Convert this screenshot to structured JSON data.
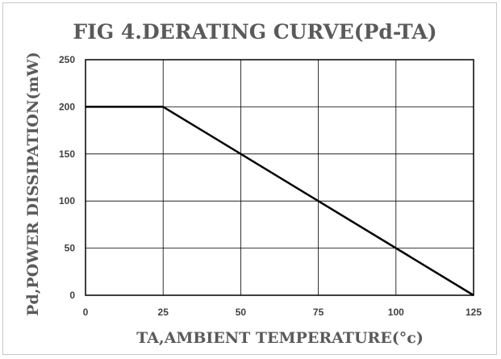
{
  "chart_data": {
    "type": "line",
    "title": "FIG 4.DERATING CURVE(Pd-TA)",
    "xlabel": "TA,AMBIENT TEMPERATURE(°c)",
    "ylabel": "Pd,POWER DISSIPATION(mW)",
    "xlim": [
      0,
      125
    ],
    "ylim": [
      0,
      250
    ],
    "xticks": [
      "0",
      "25",
      "50",
      "75",
      "100",
      "125"
    ],
    "yticks": [
      "0",
      "50",
      "100",
      "150",
      "200",
      "250"
    ],
    "grid": true,
    "legend": "none",
    "series": [
      {
        "x": [
          0,
          25,
          125
        ],
        "y": [
          200,
          200,
          0
        ],
        "color": "#000000"
      }
    ]
  }
}
